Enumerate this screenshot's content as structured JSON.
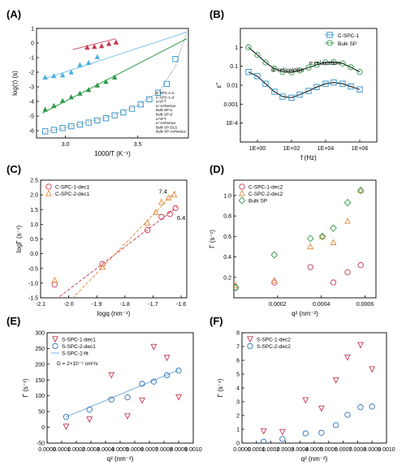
{
  "chart_data": [
    {
      "panel": "(A)",
      "type": "scatter",
      "xlabel": "1000/T (K⁻¹)",
      "ylabel": "log(τ) (s)",
      "xlim": [
        2.8,
        3.85
      ],
      "ylim": [
        -6.5,
        1
      ],
      "xticks": [
        3.0,
        3.5
      ],
      "yticks": [
        -6,
        -5,
        -4,
        -3,
        -2,
        -1,
        0,
        1
      ],
      "legend_position": "right",
      "legend": [
        "C-SPC-1-α",
        "C-SPC-1-α'",
        "α-VFT",
        "α'-Arrhenius",
        "Bulk SP-α",
        "Bulk SP-α'",
        "α-VFT",
        "α'-Arrhenius",
        "Bulk SP-DLS",
        "Bulk SP-Arrhenius"
      ],
      "series": [
        {
          "name": "C-SPC-1-α",
          "marker": "open-square",
          "color": "#2a8fc7",
          "x": [
            2.86,
            2.92,
            2.98,
            3.04,
            3.1,
            3.16,
            3.22,
            3.28,
            3.34,
            3.4,
            3.46,
            3.52,
            3.58,
            3.64,
            3.7,
            3.76
          ],
          "y": [
            -6.05,
            -5.95,
            -5.82,
            -5.7,
            -5.58,
            -5.45,
            -5.3,
            -5.15,
            -4.95,
            -4.75,
            -4.5,
            -4.2,
            -3.85,
            -3.4,
            -2.8,
            -1.1
          ]
        },
        {
          "name": "C-SPC-1-α'",
          "marker": "filled-triangle",
          "color": "#2e9a47",
          "x": [
            2.86,
            2.92,
            2.98,
            3.04,
            3.1,
            3.16,
            3.22,
            3.28,
            3.34
          ],
          "y": [
            -4.55,
            -4.3,
            -3.95,
            -3.7,
            -3.45,
            -3.2,
            -2.9,
            -2.65,
            -2.35
          ]
        },
        {
          "name": "Bulk SP-α'",
          "marker": "filled-triangle",
          "color": "#4bb3e0",
          "x": [
            2.86,
            2.92,
            2.98,
            3.04,
            3.1,
            3.16,
            3.22
          ],
          "y": [
            -2.35,
            -2.25,
            -2.2,
            -2.0,
            -1.5,
            -1.35,
            -0.95
          ]
        },
        {
          "name": "Bulk SP-DLS",
          "marker": "filled-triangle",
          "color": "#c8384f",
          "x": [
            3.15,
            3.2,
            3.25,
            3.3,
            3.35
          ],
          "y": [
            -0.3,
            -0.25,
            -0.2,
            -0.05,
            0.05
          ]
        }
      ],
      "fits": [
        {
          "name": "α-VFT",
          "style": "dotted",
          "color": "#999999",
          "x": [
            2.86,
            3.1,
            3.3,
            3.5,
            3.65,
            3.76,
            3.84
          ],
          "y": [
            -6.1,
            -5.55,
            -5.05,
            -4.3,
            -3.3,
            -1.6,
            0.8
          ]
        },
        {
          "name": "α'-Arrhenius",
          "style": "solid",
          "color": "#2e9a47",
          "x": [
            2.84,
            3.84
          ],
          "y": [
            -4.8,
            0.3
          ]
        },
        {
          "name": "Bulk SP-α'",
          "style": "solid",
          "color": "#7fc6ea",
          "x": [
            2.84,
            3.84
          ],
          "y": [
            -2.5,
            0.75
          ]
        },
        {
          "name": "Bulk SP-Arrhenius",
          "style": "solid",
          "color": "#d05a72",
          "x": [
            3.05,
            3.35
          ],
          "y": [
            -0.45,
            0.3
          ]
        }
      ]
    },
    {
      "panel": "(B)",
      "type": "line",
      "xscale": "log",
      "yscale": "log",
      "xlabel": "f (Hz)",
      "ylabel": "ε''",
      "xlim": [
        0.1,
        10000000
      ],
      "ylim": [
        1e-05,
        10
      ],
      "xticks": [
        "1E+00",
        "1E+02",
        "1E+04",
        "1E+06"
      ],
      "yticks": [
        "1E-4",
        "0.001",
        "0.01",
        "0.1",
        "1"
      ],
      "legend_position": "top-right",
      "legend": [
        "C-SPC-1",
        "Bulk SP"
      ],
      "annotations": [
        "α' relaxation",
        "α relaxation"
      ],
      "series": [
        {
          "name": "C-SPC-1",
          "marker": "open-square",
          "color": "#2a8fc7",
          "x": [
            0.3,
            1,
            3,
            10,
            30,
            100,
            300,
            1000,
            3000,
            10000,
            30000,
            100000,
            300000,
            1000000
          ],
          "y": [
            0.05,
            0.03,
            0.012,
            0.0045,
            0.0025,
            0.0022,
            0.0032,
            0.005,
            0.008,
            0.012,
            0.014,
            0.012,
            0.0085,
            0.006
          ]
        },
        {
          "name": "Bulk SP",
          "marker": "open-circle",
          "color": "#2e9a47",
          "x": [
            0.3,
            1,
            3,
            10,
            30,
            100,
            300,
            1000,
            3000,
            10000,
            30000,
            100000,
            300000,
            1000000
          ],
          "y": [
            1.0,
            0.4,
            0.16,
            0.075,
            0.05,
            0.048,
            0.06,
            0.085,
            0.12,
            0.16,
            0.17,
            0.14,
            0.09,
            0.05
          ]
        }
      ]
    },
    {
      "panel": "(C)",
      "type": "scatter",
      "xlabel": "logq (nm⁻¹)",
      "ylabel": "logΓ (s⁻¹)",
      "xlim": [
        -2.1,
        -1.58
      ],
      "ylim": [
        -1.5,
        2.5
      ],
      "xticks": [
        -2.1,
        -2.0,
        -1.9,
        -1.8,
        -1.7,
        -1.6
      ],
      "yticks": [
        -1.5,
        -1.0,
        -0.5,
        0.0,
        0.5,
        1.0,
        1.5,
        2.0,
        2.5
      ],
      "legend_position": "top-left",
      "annotations": [
        "7.4",
        "6.4"
      ],
      "series": [
        {
          "name": "C-SPC-1-dec1",
          "marker": "open-circle",
          "color": "#c8384f",
          "x": [
            -2.05,
            -1.88,
            -1.72,
            -1.67,
            -1.64,
            -1.62
          ],
          "y": [
            -1.05,
            -0.35,
            0.8,
            1.25,
            1.35,
            1.55
          ]
        },
        {
          "name": "C-SPC-2-dec1",
          "marker": "open-triangle",
          "color": "#e08a3a",
          "x": [
            -2.05,
            -1.88,
            -1.72,
            -1.69,
            -1.67,
            -1.645,
            -1.625
          ],
          "y": [
            -0.9,
            -0.45,
            1.05,
            1.4,
            1.75,
            1.9,
            2.0
          ]
        }
      ]
    },
    {
      "panel": "(D)",
      "type": "scatter",
      "xlabel": "q² (nm⁻²)",
      "ylabel": "Γ (s⁻¹)",
      "xlim": [
        0,
        0.00065
      ],
      "ylim": [
        0,
        1.15
      ],
      "xticks": [
        0.0002,
        0.0004,
        0.0006
      ],
      "yticks": [
        0.2,
        0.4,
        0.6,
        0.8,
        1.0
      ],
      "legend_position": "top-left",
      "series": [
        {
          "name": "C-SPC-1-dec2",
          "marker": "open-circle",
          "color": "#c8384f",
          "x": [
            8.5e-06,
            0.000185,
            0.00035,
            0.000455,
            0.00052,
            0.00058
          ],
          "y": [
            0.1,
            0.15,
            0.3,
            0.15,
            0.25,
            0.32
          ]
        },
        {
          "name": "C-SPC-2-dec2",
          "marker": "open-triangle",
          "color": "#e08a3a",
          "x": [
            8.5e-06,
            0.000185,
            0.00035,
            0.000405,
            0.000455,
            0.00052,
            0.00058
          ],
          "y": [
            0.12,
            0.17,
            0.5,
            0.6,
            0.54,
            0.75,
            1.05
          ]
        },
        {
          "name": "Bulk SP",
          "marker": "open-diamond",
          "color": "#2e9a47",
          "x": [
            8.5e-06,
            0.000185,
            0.00035,
            0.000405,
            0.000455,
            0.00052,
            0.00058
          ],
          "y": [
            0.1,
            0.42,
            0.58,
            0.6,
            0.68,
            0.93,
            1.05
          ]
        }
      ]
    },
    {
      "panel": "(E)",
      "type": "scatter",
      "xlabel": "q² (nm⁻²)",
      "ylabel": "Γ (s⁻¹)",
      "xlim": [
        0,
        0.001
      ],
      "ylim": [
        -50,
        300
      ],
      "xticks": [
        "0.0000",
        "0.0001",
        "0.0002",
        "0.0003",
        "0.0004",
        "0.0005",
        "0.0006",
        "0.0007",
        "0.0008",
        "0.0009",
        "0.0010"
      ],
      "yticks": [
        -50,
        0,
        50,
        100,
        150,
        200,
        250,
        300
      ],
      "legend_position": "top-left",
      "annotation": "D = 2×10⁻⁹ cm²/s",
      "series": [
        {
          "name": "S-SPC-1-dec1",
          "marker": "open-triangle-down",
          "color": "#c8384f",
          "x": [
            0.00013,
            0.00029,
            0.00044,
            0.00055,
            0.00065,
            0.00073,
            0.00082,
            0.0009
          ],
          "y": [
            2,
            25,
            165,
            35,
            85,
            255,
            220,
            95
          ]
        },
        {
          "name": "S-SPC-2-dec1",
          "marker": "open-circle",
          "color": "#2a6fb5",
          "x": [
            0.00013,
            0.00029,
            0.00044,
            0.00055,
            0.00065,
            0.00073,
            0.00082,
            0.0009
          ],
          "y": [
            33,
            56,
            88,
            95,
            138,
            145,
            165,
            180
          ]
        }
      ],
      "fits": [
        {
          "name": "S-SPC-2-fit",
          "style": "solid",
          "color": "#7fb0dd",
          "x": [
            0.00013,
            0.0009
          ],
          "y": [
            33,
            182
          ]
        }
      ]
    },
    {
      "panel": "(F)",
      "type": "scatter",
      "xlabel": "q² (nm⁻²)",
      "ylabel": "Γ (s⁻¹)",
      "xlim": [
        0,
        0.001
      ],
      "ylim": [
        0,
        8
      ],
      "xticks": [
        "0.0000",
        "0.0001",
        "0.0002",
        "0.0003",
        "0.0004",
        "0.0005",
        "0.0006",
        "0.0007",
        "0.0008",
        "0.0009",
        "0.0010"
      ],
      "yticks": [
        0,
        1,
        2,
        3,
        4,
        5,
        6,
        7,
        8
      ],
      "legend_position": "top-left",
      "series": [
        {
          "name": "S-SPC-1-dec2",
          "marker": "open-triangle-down",
          "color": "#c8384f",
          "x": [
            0.00015,
            0.00028,
            0.00044,
            0.00055,
            0.00065,
            0.00073,
            0.00082,
            0.0009
          ],
          "y": [
            0.85,
            0.8,
            3.1,
            2.5,
            4.55,
            6.2,
            7.1,
            5.35
          ]
        },
        {
          "name": "S-SPC-2-dec2",
          "marker": "open-circle",
          "color": "#2a6fb5",
          "x": [
            0.00015,
            0.00028,
            0.00044,
            0.00055,
            0.00065,
            0.00073,
            0.00082,
            0.0009
          ],
          "y": [
            0.1,
            0.3,
            0.7,
            0.75,
            1.3,
            2.05,
            2.6,
            2.65
          ]
        }
      ]
    }
  ]
}
